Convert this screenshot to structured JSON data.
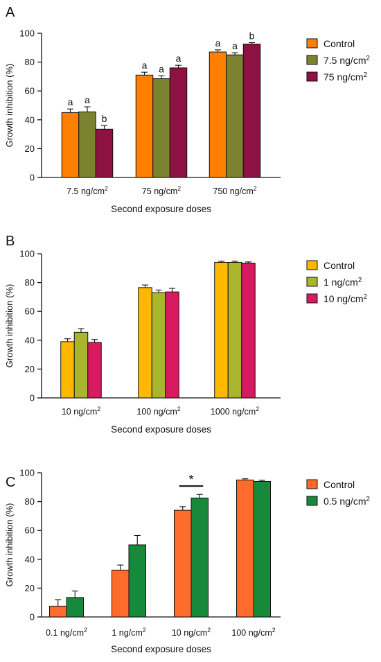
{
  "chart_data": [
    {
      "type": "bar",
      "panel_label": "A",
      "categories": [
        {
          "base": "7.5 ng/cm",
          "sup": "2"
        },
        {
          "base": "75 ng/cm",
          "sup": "2"
        },
        {
          "base": "750 ng/cm",
          "sup": "2"
        }
      ],
      "series": [
        {
          "name": "Control",
          "legend_label": {
            "base": "Control",
            "sup": ""
          },
          "color": "#FF8000",
          "values": [
            45,
            71,
            87
          ],
          "errors": [
            2.5,
            2.0,
            1.5
          ],
          "annotations": [
            "a",
            "a",
            "a"
          ]
        },
        {
          "name": "7.5 ng/cm2",
          "legend_label": {
            "base": "7.5 ng/cm",
            "sup": "2"
          },
          "color": "#7B8230",
          "values": [
            45.5,
            68.5,
            85
          ],
          "errors": [
            3.5,
            2.0,
            1.5
          ],
          "annotations": [
            "a",
            "a",
            "a"
          ]
        },
        {
          "name": "75 ng/cm2",
          "legend_label": {
            "base": "75 ng/cm",
            "sup": "2"
          },
          "color": "#8E1144",
          "values": [
            33.5,
            76,
            92.5
          ],
          "errors": [
            2.5,
            1.8,
            1.0
          ],
          "annotations": [
            "b",
            "a",
            "b"
          ]
        }
      ],
      "xlabel": "Second exposure doses",
      "ylabel": "Growth inhibition (%)",
      "ylim": [
        0,
        100
      ],
      "yticks": [
        0,
        20,
        40,
        60,
        80,
        100
      ],
      "legend_position": "right"
    },
    {
      "type": "bar",
      "panel_label": "B",
      "categories": [
        {
          "base": "10 ng/cm",
          "sup": "2"
        },
        {
          "base": "100 ng/cm",
          "sup": "2"
        },
        {
          "base": "1000 ng/cm",
          "sup": "2"
        }
      ],
      "series": [
        {
          "name": "Control",
          "legend_label": {
            "base": "Control",
            "sup": ""
          },
          "color": "#FFB800",
          "values": [
            39,
            76.5,
            94
          ],
          "errors": [
            2.0,
            1.8,
            0.8
          ]
        },
        {
          "name": "1 ng/cm2",
          "legend_label": {
            "base": "1 ng/cm",
            "sup": "2"
          },
          "color": "#A9B52B",
          "values": [
            45.5,
            73,
            94
          ],
          "errors": [
            2.5,
            1.8,
            0.8
          ]
        },
        {
          "name": "10 ng/cm2",
          "legend_label": {
            "base": "10 ng/cm",
            "sup": "2"
          },
          "color": "#D81B60",
          "values": [
            38.5,
            73.5,
            93.5
          ],
          "errors": [
            2.0,
            2.5,
            0.8
          ]
        }
      ],
      "xlabel": "Second exposure doses",
      "ylabel": "Growth inhibition (%)",
      "ylim": [
        0,
        100
      ],
      "yticks": [
        0,
        20,
        40,
        60,
        80,
        100
      ],
      "legend_position": "right"
    },
    {
      "type": "bar",
      "panel_label": "C",
      "categories": [
        {
          "base": "0.1 ng/cm",
          "sup": "2"
        },
        {
          "base": "1 ng/cm",
          "sup": "2"
        },
        {
          "base": "10 ng/cm",
          "sup": "2"
        },
        {
          "base": "100 ng/cm",
          "sup": "2"
        }
      ],
      "series": [
        {
          "name": "Control",
          "legend_label": {
            "base": "Control",
            "sup": ""
          },
          "color": "#FF6B2B",
          "values": [
            7.5,
            32.5,
            74,
            95
          ],
          "errors": [
            4.5,
            3.5,
            2.5,
            0.8
          ]
        },
        {
          "name": "0.5 ng/cm2",
          "legend_label": {
            "base": "0.5 ng/cm",
            "sup": "2"
          },
          "color": "#16893A",
          "values": [
            13.5,
            50,
            82.5,
            94
          ],
          "errors": [
            4.5,
            6.5,
            2.5,
            0.8
          ]
        }
      ],
      "significance": [
        {
          "category_index": 2,
          "label": "*"
        }
      ],
      "xlabel": "Second exposure doses",
      "ylabel": "Growth inhibition (%)",
      "ylim": [
        0,
        100
      ],
      "yticks": [
        0,
        20,
        40,
        60,
        80,
        100
      ],
      "legend_position": "right"
    }
  ]
}
